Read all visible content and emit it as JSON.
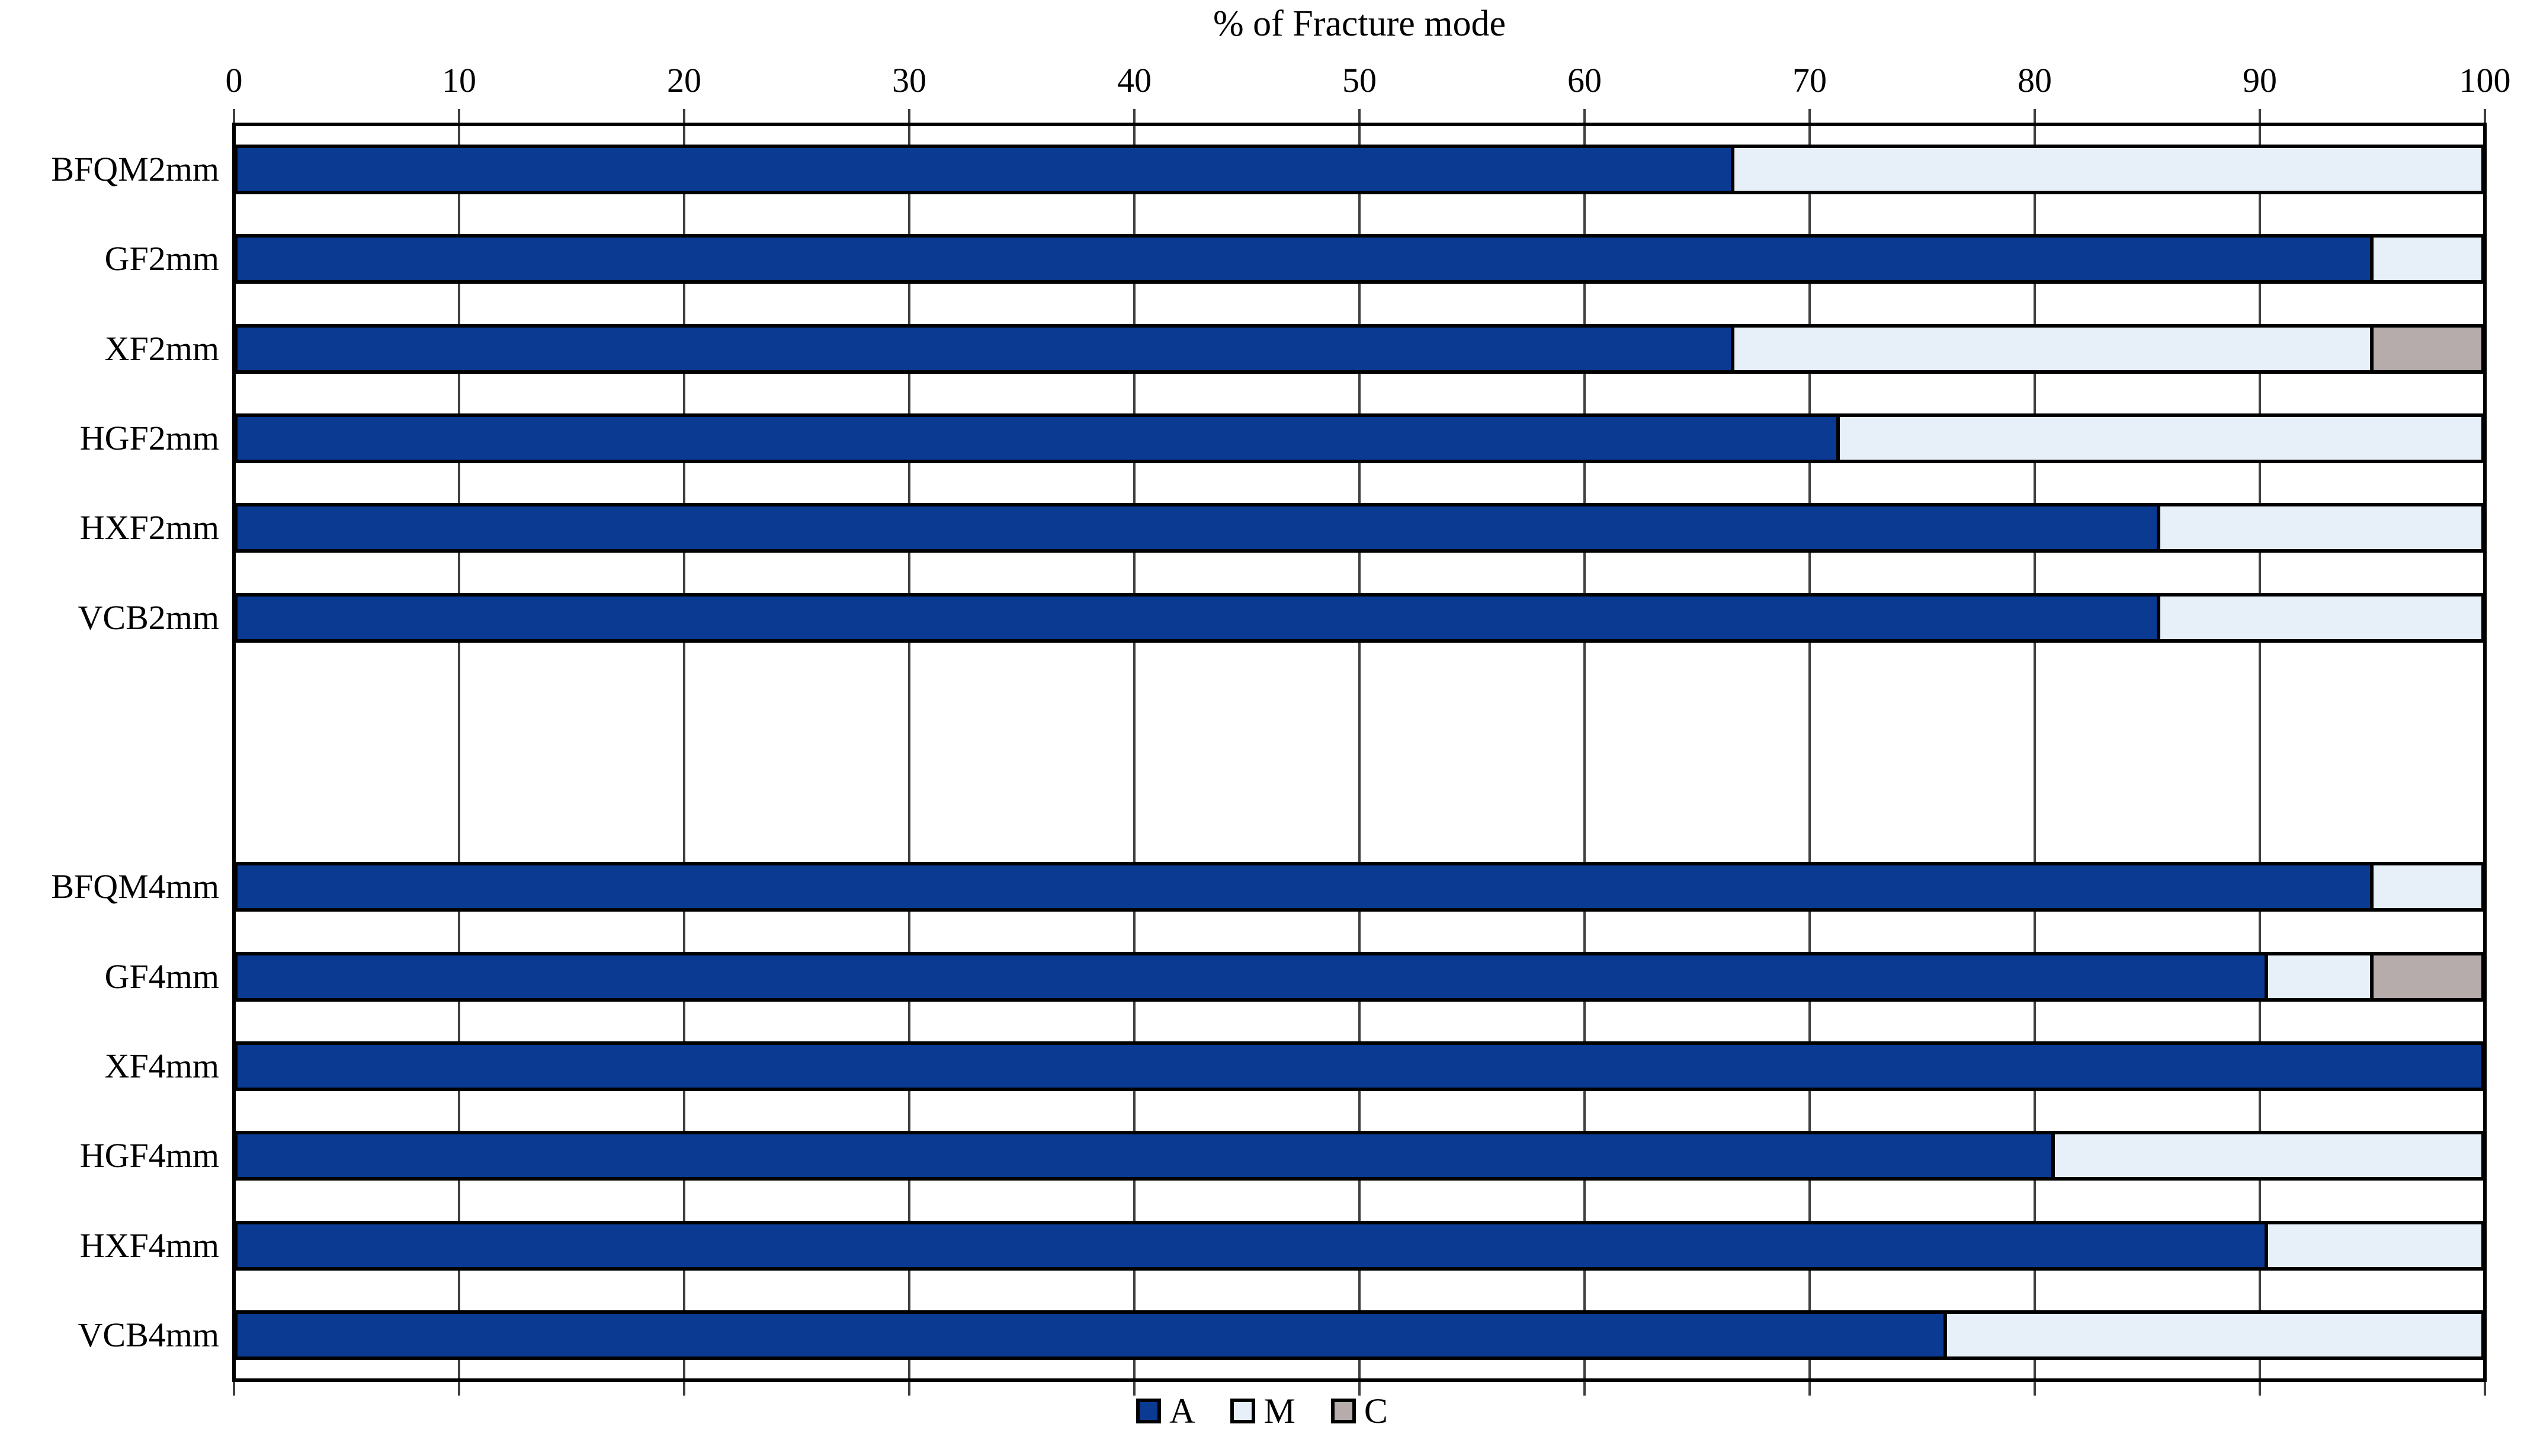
{
  "chart_data": {
    "type": "bar",
    "orientation": "horizontal-stacked",
    "title": "% of Fracture mode",
    "xlabel": "% of Fracture mode",
    "ylabel": "",
    "x_axis": {
      "min": 0,
      "max": 100,
      "tick_step": 10,
      "ticks": [
        0,
        10,
        20,
        30,
        40,
        50,
        60,
        70,
        80,
        90,
        100
      ],
      "position": "top"
    },
    "grid": {
      "show": true,
      "color": "#3f3f3f"
    },
    "categories": [
      "BFQM2mm",
      "GF2mm",
      "XF2mm",
      "HGF2mm",
      "HXF2mm",
      "VCB2mm",
      "BFQM4mm",
      "GF4mm",
      "XF4mm",
      "HGF4mm",
      "HXF4mm",
      "VCB4mm"
    ],
    "group_gap_after": "VCB2mm",
    "row_slots": [
      0,
      1,
      2,
      3,
      4,
      5,
      8,
      9,
      10,
      11,
      12,
      13
    ],
    "total_slots": 14,
    "series": [
      {
        "name": "A",
        "color": "#0a3a91",
        "values": [
          66.7,
          95.2,
          66.7,
          71.4,
          85.7,
          85.7,
          95.2,
          90.5,
          100,
          81.0,
          90.5,
          76.2
        ]
      },
      {
        "name": "M",
        "color": "#e7eff8",
        "values": [
          33.3,
          4.8,
          28.5,
          28.6,
          14.3,
          14.3,
          4.8,
          4.7,
          0,
          19.0,
          9.5,
          23.8
        ]
      },
      {
        "name": "C",
        "color": "#b5acab",
        "values": [
          0,
          0,
          4.8,
          0,
          0,
          0,
          0,
          4.8,
          0,
          0,
          0,
          0
        ]
      }
    ],
    "legend": {
      "position": "bottom",
      "entries": [
        {
          "label": "A",
          "color": "#0a3a91"
        },
        {
          "label": "M",
          "color": "#e7eff8"
        },
        {
          "label": "C",
          "color": "#b5acab"
        }
      ]
    }
  }
}
